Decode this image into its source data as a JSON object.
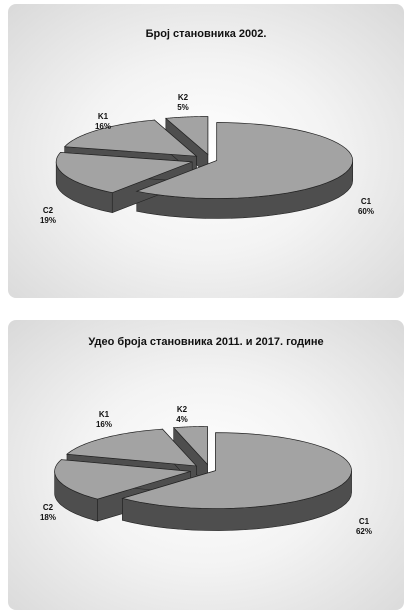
{
  "colors": {
    "top_fill": "#a3a3a3",
    "side_fill": "#4e4e4e",
    "edge": "#222222"
  },
  "chart_data": [
    {
      "type": "pie",
      "title": "Број становника 2002.",
      "slices": [
        {
          "label": "C1",
          "value": 60,
          "value_label": "60%"
        },
        {
          "label": "C2",
          "value": 19,
          "value_label": "19%"
        },
        {
          "label": "K1",
          "value": 16,
          "value_label": "16%"
        },
        {
          "label": "K2",
          "value": 5,
          "value_label": "5%"
        }
      ],
      "style": "3d-exploded"
    },
    {
      "type": "pie",
      "title": "Удео броја становника 2011. и 2017. године",
      "slices": [
        {
          "label": "C1",
          "value": 62,
          "value_label": "62%"
        },
        {
          "label": "C2",
          "value": 18,
          "value_label": "18%"
        },
        {
          "label": "K1",
          "value": 16,
          "value_label": "16%"
        },
        {
          "label": "K2",
          "value": 4,
          "value_label": "4%"
        }
      ],
      "style": "3d-exploded"
    }
  ]
}
